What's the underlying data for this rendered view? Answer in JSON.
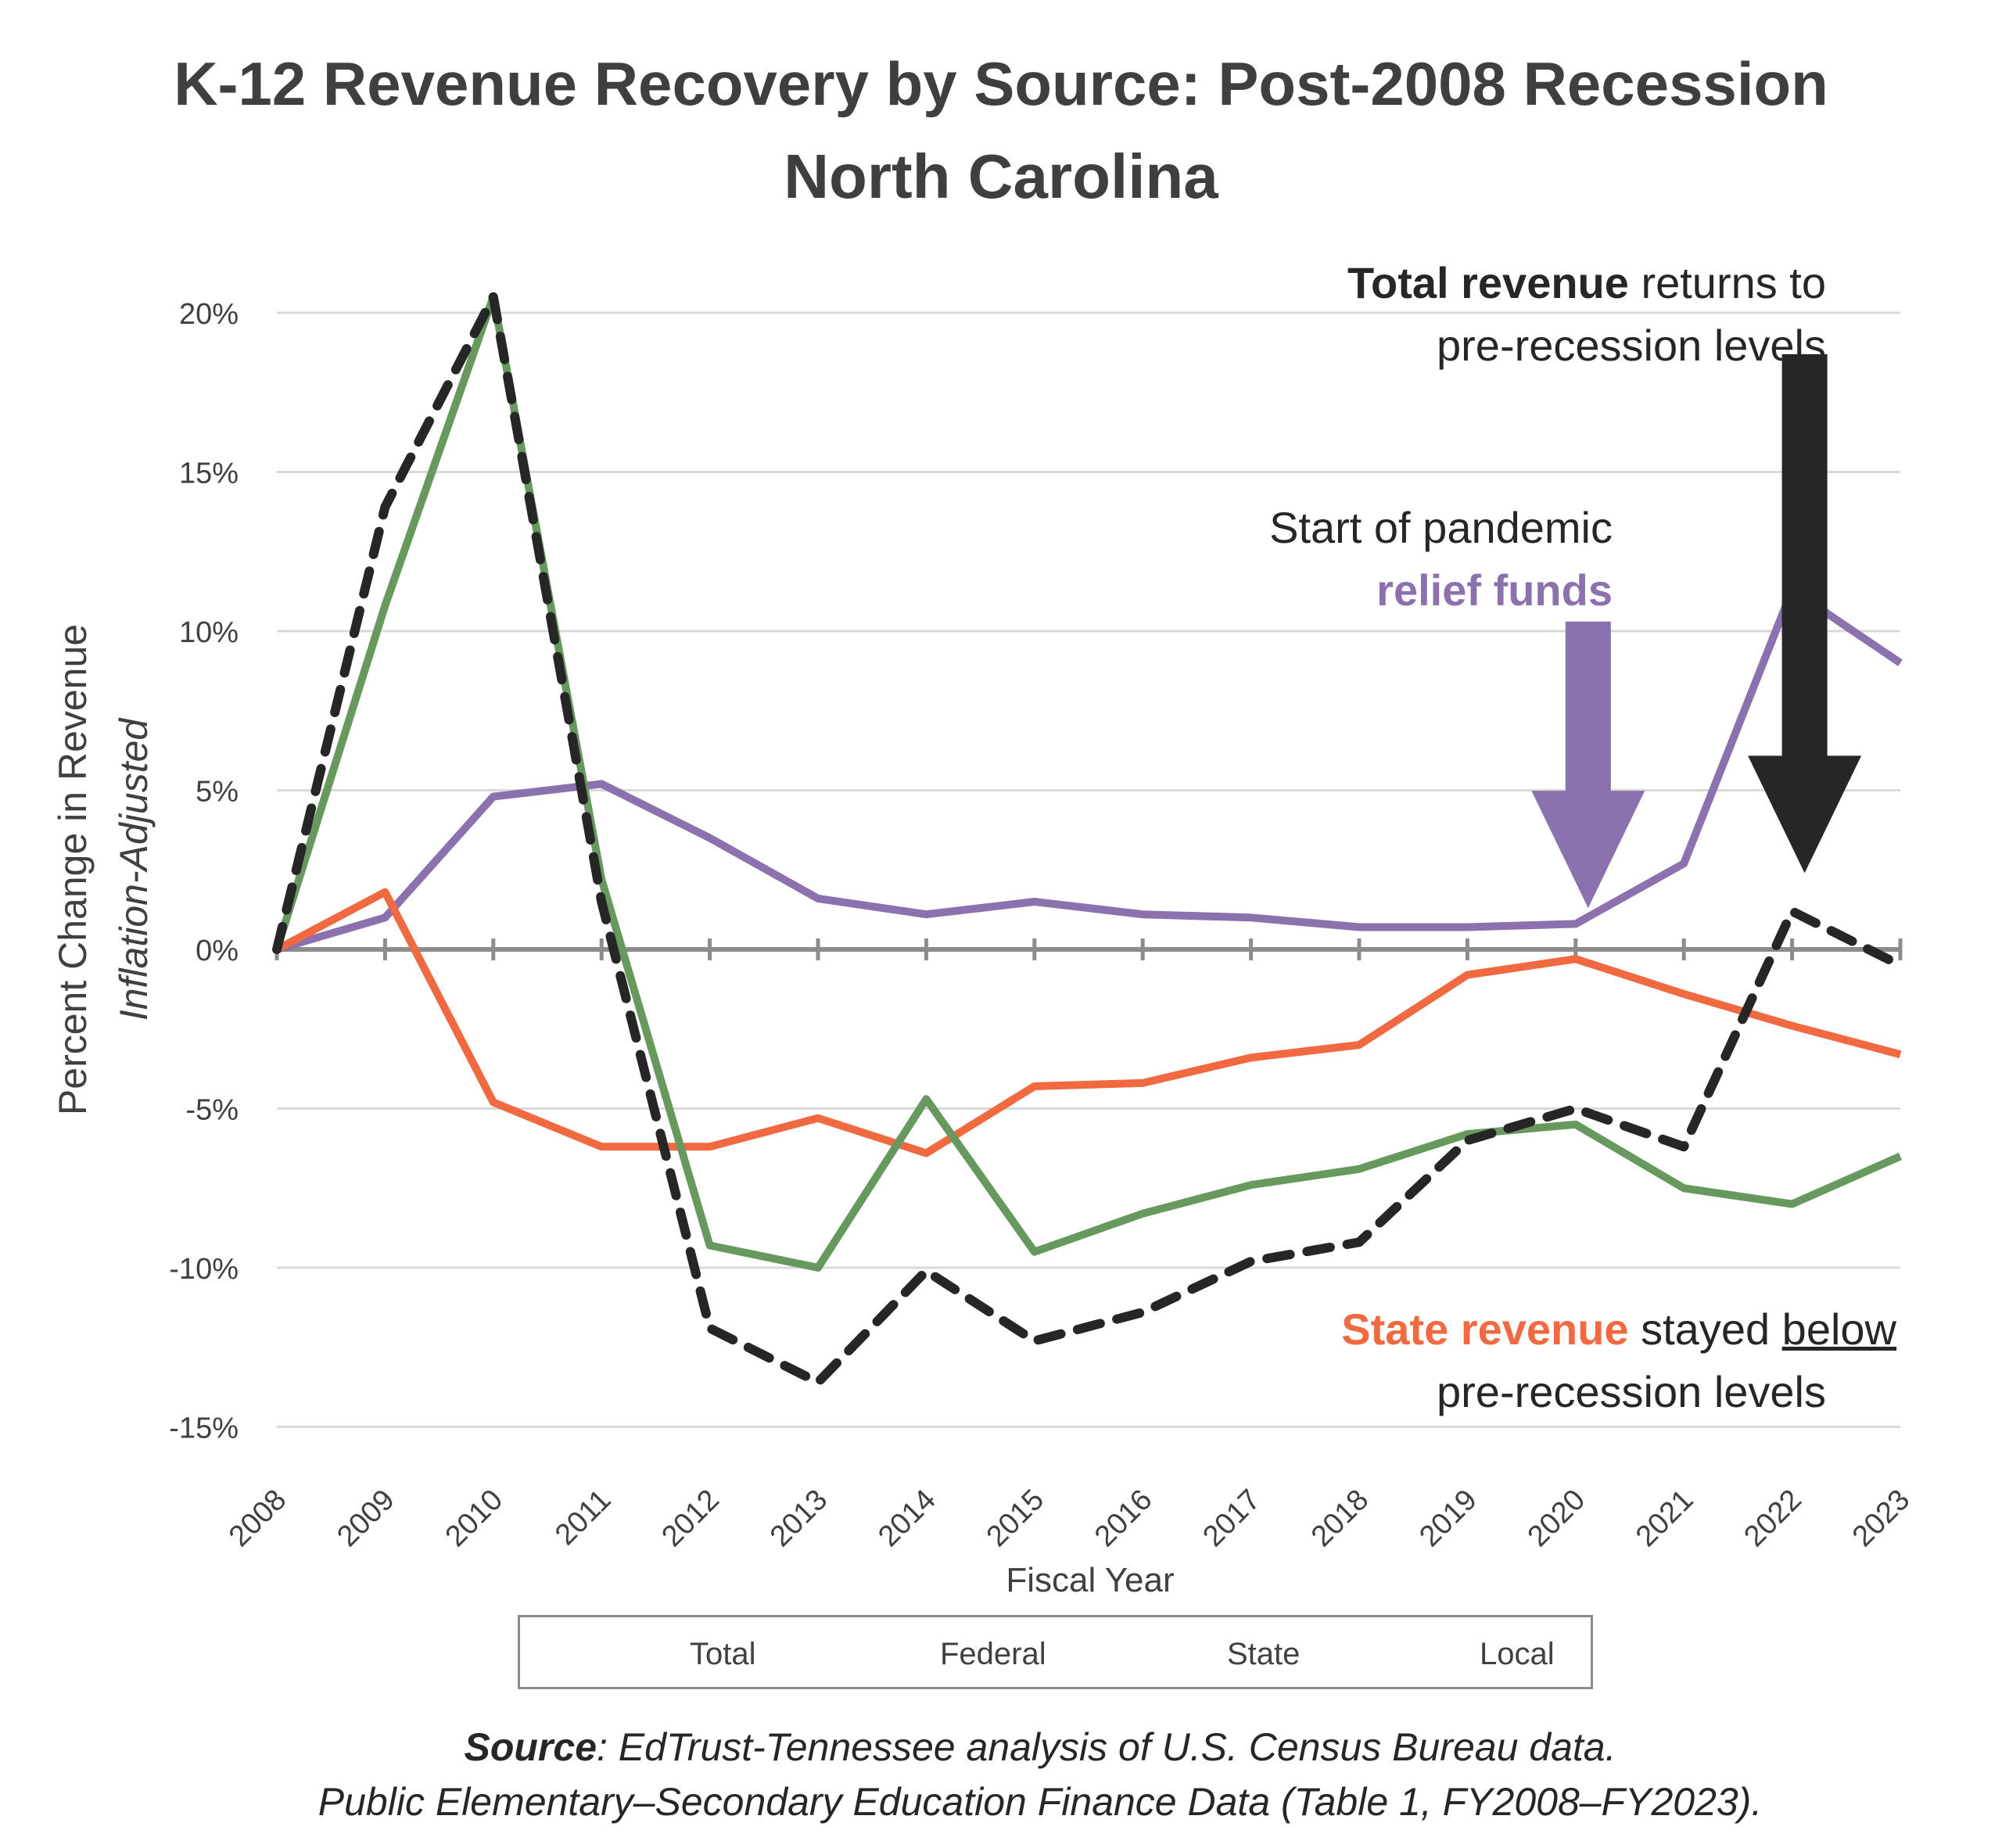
{
  "title": "K-12 Revenue Recovery by Source: Post-2008 Recession",
  "subtitle": "North Carolina",
  "annotations": {
    "total": {
      "bold": "Total revenue",
      "rest": " returns to",
      "line2": "pre-recession levels",
      "color": "#262626"
    },
    "pandemic": {
      "line1": "Start of pandemic",
      "bold": "relief funds",
      "color": "#8b71ae"
    },
    "state": {
      "bold": "State revenue",
      "middle": " stayed ",
      "underlined": "below",
      "line2": "pre-recession levels",
      "color": "#f06941"
    }
  },
  "source": {
    "label": "Source",
    "text": ": EdTrust-Tennessee analysis of U.S. Census Bureau data.",
    "line2": "Public Elementary–Secondary Education Finance Data (Table 1, FY2008–FY2023)."
  },
  "chart_data": {
    "type": "line",
    "title": "K-12 Revenue Recovery by Source: Post-2008 Recession — North Carolina",
    "xlabel": "Fiscal Year",
    "ylabel": "Percent  Change in Revenue",
    "ylabel2": "Inflation-Adjusted",
    "x": [
      "2008",
      "2009",
      "2010",
      "2011",
      "2012",
      "2013",
      "2014",
      "2015",
      "2016",
      "2017",
      "2018",
      "2019",
      "2020",
      "2021",
      "2022",
      "2023"
    ],
    "ylim": [
      -15,
      20
    ],
    "yticks": [
      20,
      15,
      10,
      5,
      0,
      -5,
      -10,
      -15
    ],
    "ytick_labels": [
      "20%",
      "15%",
      "10%",
      "5%",
      "0%",
      "-5%",
      "-10%",
      "-15%"
    ],
    "grid": true,
    "legend": "bottom",
    "series": [
      {
        "name": "Total",
        "color": "#262626",
        "dashed": true,
        "values": [
          0,
          13.9,
          20.5,
          1.5,
          -11.9,
          -13.6,
          -10.1,
          -12.3,
          -11.4,
          -9.8,
          -9.2,
          -6.0,
          -5.0,
          -6.2,
          1.2,
          -0.5
        ]
      },
      {
        "name": "Federal",
        "color": "#8b71ae",
        "dashed": false,
        "values": [
          0,
          1.0,
          4.8,
          5.2,
          3.5,
          1.6,
          1.1,
          1.5,
          1.1,
          1.0,
          0.7,
          0.7,
          0.8,
          2.7,
          11.3,
          9.0
        ]
      },
      {
        "name": "State",
        "color": "#f06941",
        "dashed": false,
        "values": [
          0,
          1.8,
          -4.8,
          -6.2,
          -6.2,
          -5.3,
          -6.4,
          -4.3,
          -4.2,
          -3.4,
          -3.0,
          -0.8,
          -0.3,
          -1.4,
          -2.4,
          -3.3
        ]
      },
      {
        "name": "Local",
        "color": "#67995f",
        "dashed": false,
        "values": [
          0,
          10.8,
          20.5,
          2.2,
          -9.3,
          -10.0,
          -4.7,
          -9.5,
          -8.3,
          -7.4,
          -6.9,
          -5.8,
          -5.5,
          -7.5,
          -8.0,
          -6.5
        ]
      }
    ],
    "arrows": [
      {
        "name": "pandemic-relief-arrow",
        "x": "2020",
        "color": "#8b71ae",
        "from": 10.3,
        "to": 1.3
      },
      {
        "name": "total-recovery-arrow",
        "x": "2022",
        "color": "#262626",
        "from": 18.7,
        "to": 2.4
      }
    ]
  }
}
